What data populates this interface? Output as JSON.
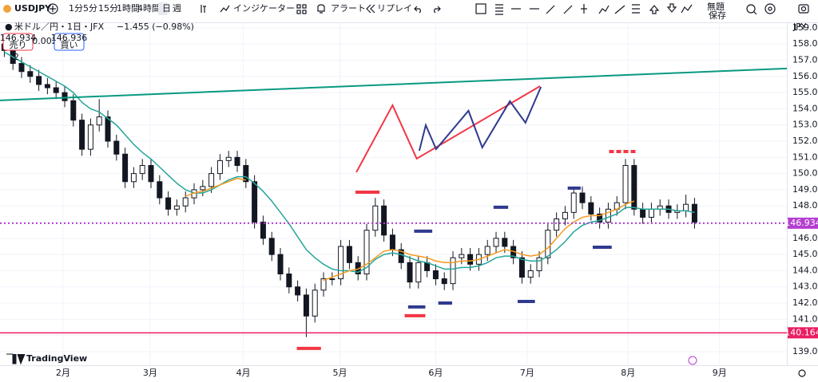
{
  "toolbar": {
    "symbol": "USDJPY",
    "intervals": [
      "1分",
      "5分",
      "15分",
      "1時間",
      "4時間",
      "日",
      "週"
    ],
    "indicators": "インジケーター",
    "alerts": "アラート",
    "replay": "リプレイ",
    "layout": "無題",
    "save": "保存"
  },
  "legend": {
    "sell_price": "146.934",
    "sell": "売り",
    "spread": "0.002",
    "buy_price": "146.936",
    "buy": "買い",
    "change": "−1.455 (−0.98%)"
  },
  "marker_label": "2",
  "currency": "JPY",
  "brand": "TradingView",
  "chart_data": {
    "type": "candlestick",
    "title": "米ドル／円・1日・JFX",
    "open": [
      158.0,
      157.6,
      156.8,
      156.3,
      156.0,
      155.5,
      155.3,
      155.0,
      154.5,
      153.3,
      151.5,
      153.0,
      153.5,
      152.0,
      151.2,
      149.5,
      150.0,
      150.5,
      149.5,
      148.5,
      147.8,
      148.0,
      148.5,
      149.0,
      149.2,
      150.0,
      150.8,
      151.0,
      150.5,
      149.5,
      147.0,
      146.0,
      145.0,
      143.8,
      143.0,
      142.5,
      141.2,
      142.8,
      143.5,
      143.5,
      145.5,
      144.5,
      143.8,
      146.5,
      148.0,
      146.2,
      145.3,
      144.5,
      143.3,
      144.5,
      144.0,
      143.5,
      143.2,
      144.8,
      145.0,
      144.4,
      145.0,
      145.5,
      146.0,
      145.5,
      144.8,
      143.6,
      144.0,
      144.8,
      146.5,
      147.2,
      147.6,
      148.8,
      148.2,
      147.5,
      147.0,
      147.8,
      148.2,
      150.5,
      147.8,
      147.3,
      147.8,
      148.0,
      147.6,
      147.7,
      148.1
    ],
    "high": [
      158.4,
      158.0,
      157.2,
      156.7,
      156.4,
      155.9,
      155.7,
      155.4,
      154.9,
      153.7,
      153.4,
      154.6,
      153.9,
      152.4,
      151.6,
      150.4,
      150.9,
      150.9,
      149.9,
      148.9,
      148.4,
      148.9,
      149.4,
      149.6,
      150.4,
      151.2,
      151.4,
      151.4,
      150.9,
      149.9,
      147.4,
      146.4,
      145.4,
      144.2,
      143.4,
      142.9,
      143.2,
      143.9,
      143.9,
      145.9,
      145.9,
      144.9,
      146.9,
      148.5,
      148.4,
      146.6,
      145.7,
      144.9,
      144.9,
      144.9,
      144.4,
      143.9,
      145.2,
      145.4,
      145.4,
      145.4,
      145.9,
      146.4,
      146.4,
      145.9,
      145.2,
      144.4,
      145.2,
      146.9,
      147.6,
      148.0,
      149.2,
      149.2,
      148.6,
      147.9,
      148.2,
      148.6,
      150.9,
      150.9,
      148.2,
      148.2,
      148.4,
      148.4,
      148.1,
      148.7,
      148.5
    ],
    "low": [
      157.2,
      156.4,
      155.9,
      155.6,
      155.1,
      154.9,
      154.6,
      154.1,
      152.9,
      151.1,
      151.1,
      152.6,
      151.6,
      150.8,
      149.1,
      149.1,
      149.6,
      149.1,
      148.1,
      147.4,
      147.4,
      147.6,
      148.1,
      148.6,
      148.8,
      149.6,
      150.4,
      150.1,
      149.1,
      146.6,
      145.6,
      144.6,
      143.4,
      142.6,
      142.1,
      139.9,
      140.8,
      142.4,
      143.1,
      143.1,
      144.1,
      143.4,
      143.4,
      146.1,
      145.8,
      144.9,
      144.1,
      142.9,
      142.9,
      143.6,
      143.1,
      142.8,
      142.8,
      144.4,
      144.0,
      144.0,
      144.6,
      145.1,
      145.1,
      144.4,
      143.2,
      143.2,
      143.6,
      144.4,
      146.1,
      146.8,
      147.2,
      147.8,
      147.1,
      146.6,
      146.6,
      147.4,
      147.8,
      147.4,
      146.9,
      146.9,
      147.4,
      147.2,
      147.2,
      147.3,
      146.6
    ],
    "close": [
      157.6,
      156.8,
      156.3,
      156.0,
      155.5,
      155.3,
      155.0,
      154.5,
      153.3,
      151.5,
      153.0,
      153.5,
      152.0,
      151.2,
      149.5,
      150.0,
      150.5,
      149.5,
      148.5,
      147.8,
      148.0,
      148.5,
      149.0,
      149.2,
      150.0,
      150.8,
      151.0,
      150.5,
      149.5,
      147.0,
      146.0,
      145.0,
      143.8,
      143.0,
      142.5,
      141.2,
      142.8,
      143.5,
      143.5,
      145.5,
      144.5,
      143.8,
      146.5,
      148.0,
      146.2,
      145.3,
      144.5,
      143.3,
      144.5,
      144.0,
      143.5,
      143.2,
      144.8,
      145.0,
      144.4,
      145.0,
      145.5,
      146.0,
      145.5,
      144.8,
      143.6,
      144.0,
      144.8,
      146.5,
      147.2,
      147.6,
      148.8,
      148.2,
      147.5,
      147.0,
      147.8,
      148.2,
      150.5,
      147.8,
      147.3,
      147.8,
      148.0,
      147.6,
      147.7,
      148.1,
      147.0
    ],
    "lines": [
      {
        "color": "#26a69a",
        "values": [
          157.5,
          157.2,
          156.9,
          156.6,
          156.3,
          156.0,
          155.7,
          155.4,
          155.0,
          154.4,
          154.0,
          153.8,
          153.4,
          153.0,
          152.4,
          151.8,
          151.3,
          150.9,
          150.4,
          149.9,
          149.4,
          149.0,
          148.8,
          148.8,
          149.0,
          149.3,
          149.6,
          149.8,
          149.8,
          149.4,
          148.9,
          148.3,
          147.6,
          146.9,
          146.1,
          145.3,
          144.8,
          144.4,
          144.1,
          144.0,
          144.0,
          143.9,
          144.2,
          144.7,
          145.0,
          145.1,
          145.0,
          144.8,
          144.6,
          144.5,
          144.3,
          144.1,
          144.1,
          144.2,
          144.2,
          144.3,
          144.5,
          144.8,
          144.9,
          144.9,
          144.7,
          144.6,
          144.6,
          144.9,
          145.3,
          145.8,
          146.4,
          146.8,
          147.0,
          147.1,
          147.3,
          147.5,
          147.9,
          147.9,
          147.8,
          147.8,
          147.8,
          147.8,
          147.7,
          147.7,
          147.6
        ]
      },
      {
        "color": "#f59b1e",
        "values": [
          null,
          null,
          null,
          null,
          null,
          null,
          null,
          null,
          null,
          null,
          null,
          null,
          null,
          null,
          null,
          null,
          null,
          null,
          null,
          null,
          null,
          148.6,
          148.8,
          148.9,
          149.1,
          149.3,
          149.5,
          149.7,
          149.6,
          null,
          null,
          null,
          null,
          null,
          null,
          null,
          null,
          143.4,
          143.6,
          143.8,
          144.0,
          144.1,
          144.4,
          144.8,
          145.2,
          145.3,
          145.2,
          145.0,
          144.9,
          144.8,
          144.6,
          144.5,
          144.5,
          144.6,
          144.6,
          144.7,
          144.9,
          145.1,
          145.3,
          145.2,
          145.0,
          144.9,
          145.0,
          145.4,
          146.0,
          146.6,
          147.0,
          147.3,
          147.4,
          147.4,
          147.6,
          147.8,
          148.1,
          148.3,
          null,
          null,
          null,
          null,
          null,
          null,
          null
        ]
      }
    ],
    "price_lines": [
      {
        "value": 146.934,
        "color": "#b43ed0",
        "style": "dotted"
      },
      {
        "value": 140.164,
        "color": "#e91e63",
        "style": "solid"
      }
    ],
    "drawings": [
      {
        "color": "#089981",
        "points": [
          [
            -0.5,
            154.52
          ],
          [
            90.7,
            156.49
          ]
        ]
      },
      {
        "color": "#f23645",
        "points": [
          [
            40.8,
            150.08
          ],
          [
            45.0,
            154.22
          ],
          [
            47.8,
            150.92
          ],
          [
            62.1,
            155.4
          ]
        ]
      },
      {
        "color": "#2f3a8f",
        "points": [
          [
            48.1,
            151.41
          ],
          [
            48.85,
            152.99
          ],
          [
            50.05,
            151.51
          ],
          [
            53.8,
            153.88
          ],
          [
            55.4,
            151.61
          ],
          [
            58.6,
            154.47
          ],
          [
            60.4,
            153.14
          ],
          [
            62.2,
            155.35
          ]
        ]
      }
    ],
    "markers": [
      {
        "from": 33.9,
        "to": 36.7,
        "price": 139.2,
        "color": "#f23645"
      },
      {
        "from": 40.7,
        "to": 43.5,
        "price": 148.85,
        "color": "#f23645"
      },
      {
        "from": 47.5,
        "to": 49.6,
        "price": 146.44,
        "color": "#2f3a8f"
      },
      {
        "from": 46.8,
        "to": 48.8,
        "price": 141.76,
        "color": "#2f3a8f"
      },
      {
        "from": 46.4,
        "to": 48.8,
        "price": 141.22,
        "color": "#f23645"
      },
      {
        "from": 50.3,
        "to": 51.9,
        "price": 142.0,
        "color": "#2f3a8f"
      },
      {
        "from": 56.7,
        "to": 58.4,
        "price": 147.92,
        "color": "#2f3a8f"
      },
      {
        "from": 59.5,
        "to": 61.5,
        "price": 142.1,
        "color": "#2f3a8f"
      },
      {
        "from": 65.3,
        "to": 66.8,
        "price": 149.1,
        "color": "#2f3a8f"
      },
      {
        "from": 68.2,
        "to": 70.4,
        "price": 145.45,
        "color": "#2f3a8f"
      },
      {
        "from": 70.1,
        "to": 73.3,
        "price": 151.36,
        "color": "#f23645",
        "style": "dashed"
      }
    ],
    "xlim": [
      -0.5,
      90.7
    ],
    "ylim": [
      138.16,
      159.34
    ],
    "xticks": [
      {
        "value": 6.8,
        "label": "2月"
      },
      {
        "value": 16.9,
        "label": "3月"
      },
      {
        "value": 27.7,
        "label": "4月"
      },
      {
        "value": 38.9,
        "label": "5月"
      },
      {
        "value": 50.0,
        "label": "6月"
      },
      {
        "value": 60.6,
        "label": "7月"
      },
      {
        "value": 72.3,
        "label": "8月"
      },
      {
        "value": 82.9,
        "label": "9月"
      }
    ],
    "yticks": [
      {
        "value": 139,
        "label": "139.0"
      },
      {
        "value": 140,
        "label": "140.0"
      },
      {
        "value": 141,
        "label": "141.0"
      },
      {
        "value": 142,
        "label": "142.0"
      },
      {
        "value": 143,
        "label": "143.0"
      },
      {
        "value": 144,
        "label": "144.0"
      },
      {
        "value": 145,
        "label": "145.0"
      },
      {
        "value": 146,
        "label": "146.0"
      },
      {
        "value": 147,
        "label": "147.0"
      },
      {
        "value": 148,
        "label": "148.0"
      },
      {
        "value": 149,
        "label": "149.0"
      },
      {
        "value": 150,
        "label": "150.0"
      },
      {
        "value": 151,
        "label": "151.0"
      },
      {
        "value": 152,
        "label": "152.0"
      },
      {
        "value": 153,
        "label": "153.0"
      },
      {
        "value": 154,
        "label": "154.0"
      },
      {
        "value": 155,
        "label": "155.0"
      },
      {
        "value": 156,
        "label": "156.0"
      },
      {
        "value": 157,
        "label": "157.0"
      },
      {
        "value": 158,
        "label": "158.0"
      },
      {
        "value": 159,
        "label": "159.0"
      }
    ],
    "grid": true
  }
}
